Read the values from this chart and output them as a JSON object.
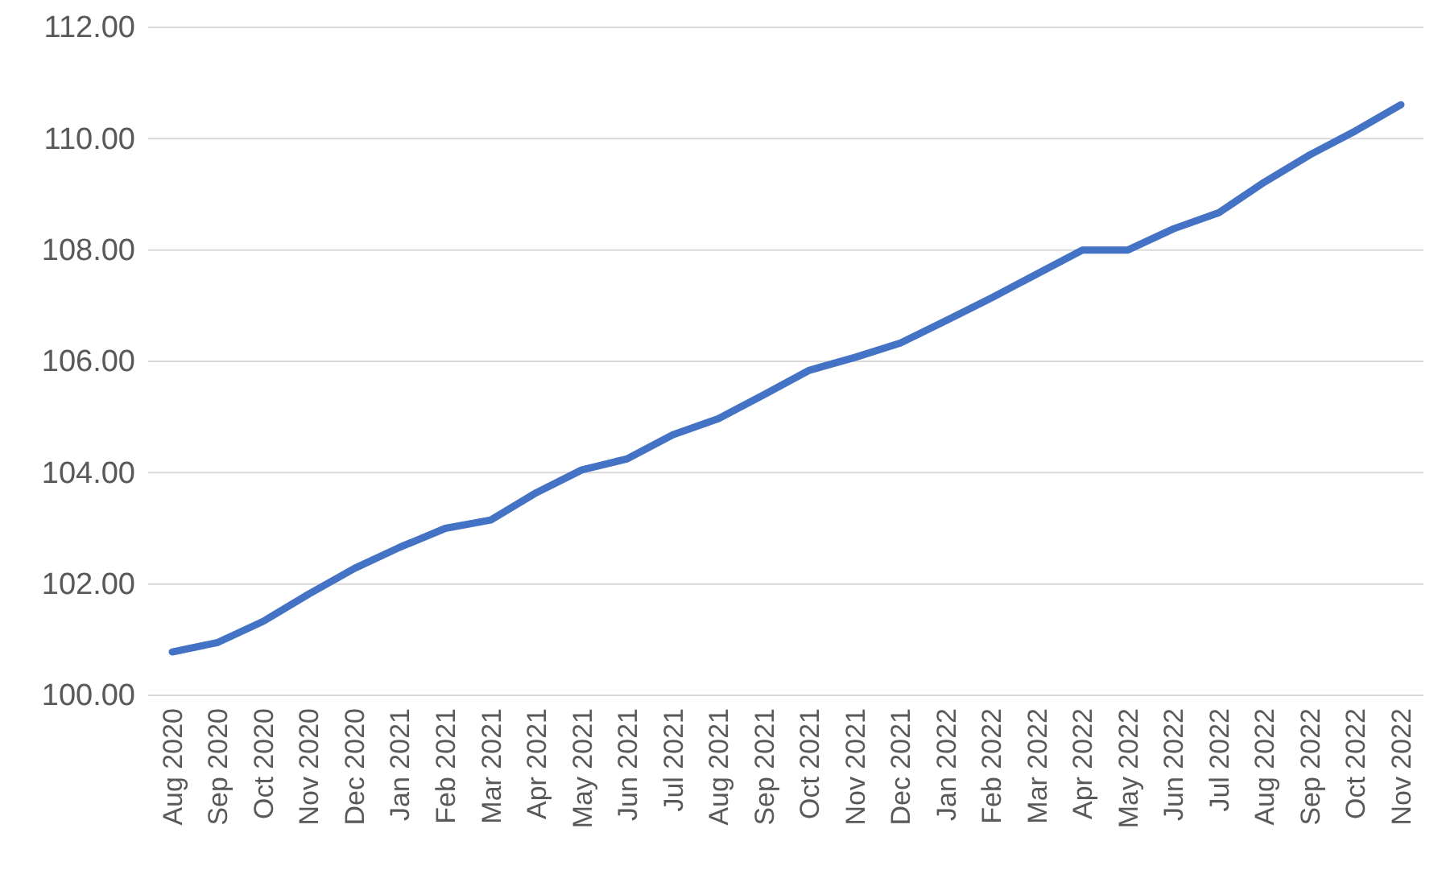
{
  "chart_data": {
    "type": "line",
    "categories": [
      "Aug 2020",
      "Sep 2020",
      "Oct 2020",
      "Nov 2020",
      "Dec 2020",
      "Jan 2021",
      "Feb 2021",
      "Mar 2021",
      "Apr 2021",
      "May 2021",
      "Jun 2021",
      "Jul 2021",
      "Aug 2021",
      "Sep 2021",
      "Oct 2021",
      "Nov 2021",
      "Dec 2021",
      "Jan 2022",
      "Feb 2022",
      "Mar 2022",
      "Apr 2022",
      "May 2022",
      "Jun 2022",
      "Jul 2022",
      "Aug 2022",
      "Sep 2022",
      "Oct 2022",
      "Nov 2022"
    ],
    "series": [
      {
        "color": "#4472c4",
        "values": [
          100.78,
          100.95,
          101.33,
          101.82,
          102.28,
          102.66,
          103.0,
          103.15,
          103.64,
          104.05,
          104.25,
          104.68,
          104.97,
          105.4,
          105.84,
          106.07,
          106.33,
          106.73,
          107.14,
          107.57,
          108.0,
          108.0,
          108.38,
          108.67,
          109.22,
          109.71,
          110.14,
          110.61
        ]
      }
    ],
    "ylim": [
      100,
      112
    ],
    "yticks": [
      {
        "value": 100,
        "label": "100.00"
      },
      {
        "value": 102,
        "label": "102.00"
      },
      {
        "value": 104,
        "label": "104.00"
      },
      {
        "value": 106,
        "label": "106.00"
      },
      {
        "value": 108,
        "label": "108.00"
      },
      {
        "value": 110,
        "label": "110.00"
      },
      {
        "value": 112,
        "label": "112.00"
      }
    ],
    "grid": "y",
    "legend": false,
    "marker": "none",
    "line_style": "solid"
  }
}
